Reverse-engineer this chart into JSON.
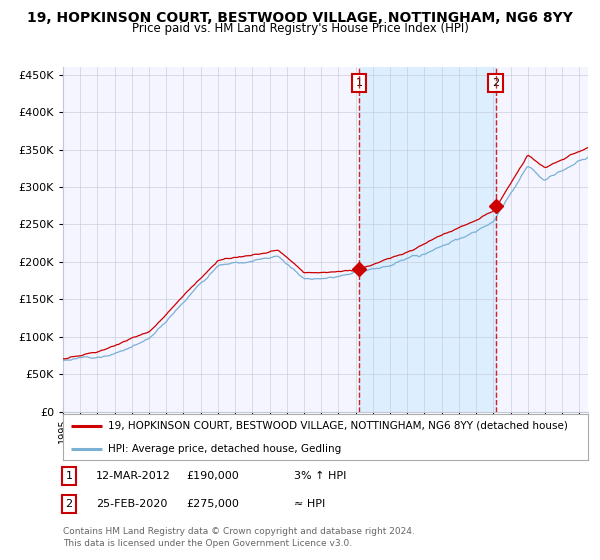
{
  "title1": "19, HOPKINSON COURT, BESTWOOD VILLAGE, NOTTINGHAM, NG6 8YY",
  "title2": "Price paid vs. HM Land Registry's House Price Index (HPI)",
  "ylim": [
    0,
    460000
  ],
  "yticks": [
    0,
    50000,
    100000,
    150000,
    200000,
    250000,
    300000,
    350000,
    400000,
    450000
  ],
  "ytick_labels": [
    "£0",
    "£50K",
    "£100K",
    "£150K",
    "£200K",
    "£250K",
    "£300K",
    "£350K",
    "£400K",
    "£450K"
  ],
  "sale1_date": 2012.19,
  "sale1_price": 190000,
  "sale2_date": 2020.14,
  "sale2_price": 275000,
  "sale1_info_date": "12-MAR-2012",
  "sale1_info_price": "£190,000",
  "sale1_info_hpi": "3% ↑ HPI",
  "sale2_info_date": "25-FEB-2020",
  "sale2_info_price": "£275,000",
  "sale2_info_hpi": "≈ HPI",
  "line1_color": "#cc0000",
  "line2_color": "#7ab0d4",
  "shade_color": "#ddeeff",
  "vline_color": "#cc0000",
  "grid_color": "#c0c8d8",
  "bg_color": "#ffffff",
  "plot_bg_color": "#f5f5ff",
  "legend1": "19, HOPKINSON COURT, BESTWOOD VILLAGE, NOTTINGHAM, NG6 8YY (detached house)",
  "legend2": "HPI: Average price, detached house, Gedling",
  "footer1": "Contains HM Land Registry data © Crown copyright and database right 2024.",
  "footer2": "This data is licensed under the Open Government Licence v3.0."
}
